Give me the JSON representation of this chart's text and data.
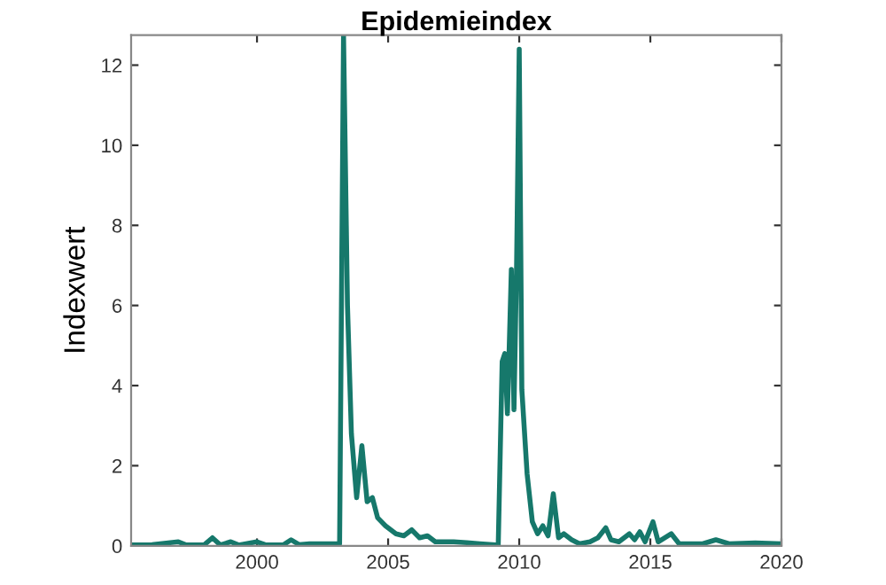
{
  "chart_data": {
    "type": "line",
    "title": "Epidemieindex",
    "ylabel": "Indexwert",
    "xlim": [
      1995.2,
      2020
    ],
    "ylim": [
      0,
      12.75
    ],
    "xticks": [
      2000,
      2005,
      2010,
      2015,
      2020
    ],
    "yticks": [
      0,
      2,
      4,
      6,
      8,
      10,
      12
    ],
    "grid": false,
    "marker": "none",
    "line_style": "solid",
    "series": [
      {
        "color": "#16786b",
        "x": [
          1995.2,
          1996,
          1997,
          1997.3,
          1998,
          1998.3,
          1998.6,
          1999,
          1999.3,
          2000,
          2000.3,
          2001,
          2001.3,
          2001.6,
          2002,
          2002.5,
          2003,
          2003.15,
          2003.3,
          2003.45,
          2003.6,
          2003.8,
          2004.0,
          2004.2,
          2004.4,
          2004.6,
          2004.9,
          2005.3,
          2005.6,
          2005.9,
          2006.2,
          2006.5,
          2006.8,
          2007.5,
          2008,
          2008.5,
          2009.1,
          2009.2,
          2009.35,
          2009.45,
          2009.55,
          2009.7,
          2009.8,
          2009.9,
          2010.0,
          2010.1,
          2010.3,
          2010.5,
          2010.7,
          2010.9,
          2011.1,
          2011.3,
          2011.5,
          2011.7,
          2012,
          2012.3,
          2012.7,
          2013,
          2013.3,
          2013.5,
          2013.8,
          2014.2,
          2014.4,
          2014.6,
          2014.8,
          2015.1,
          2015.3,
          2015.8,
          2016.1,
          2017,
          2017.5,
          2018,
          2019,
          2020
        ],
        "values": [
          0.02,
          0.03,
          0.1,
          0.02,
          0.03,
          0.2,
          0.02,
          0.1,
          0.02,
          0.1,
          0.03,
          0.02,
          0.15,
          0.03,
          0.05,
          0.05,
          0.05,
          0.05,
          12.75,
          6,
          2.8,
          1.2,
          2.5,
          1.1,
          1.2,
          0.7,
          0.5,
          0.3,
          0.25,
          0.4,
          0.2,
          0.25,
          0.1,
          0.1,
          0.08,
          0.05,
          0.02,
          0.02,
          4.6,
          4.8,
          3.3,
          6.9,
          3.4,
          7.0,
          12.4,
          3.9,
          1.8,
          0.6,
          0.3,
          0.5,
          0.25,
          1.3,
          0.2,
          0.3,
          0.15,
          0.05,
          0.1,
          0.2,
          0.45,
          0.15,
          0.1,
          0.3,
          0.15,
          0.35,
          0.1,
          0.6,
          0.1,
          0.3,
          0.05,
          0.05,
          0.15,
          0.05,
          0.07,
          0.05
        ]
      }
    ]
  }
}
